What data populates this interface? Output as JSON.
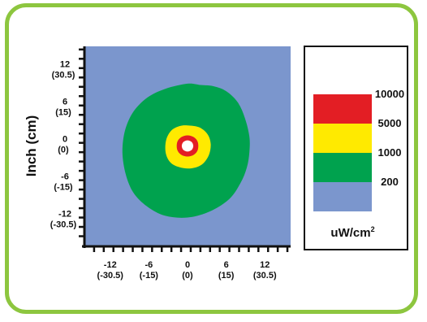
{
  "chart_data": {
    "type": "heatmap",
    "title": "",
    "ylabel": "Inch (cm)",
    "xlabel": "",
    "xlim": [
      -16,
      16
    ],
    "ylim": [
      -16,
      16
    ],
    "x_ticks": [
      {
        "value": -12,
        "label": "-12",
        "sublabel": "(-30.5)"
      },
      {
        "value": -6,
        "label": "-6",
        "sublabel": "(-15)"
      },
      {
        "value": 0,
        "label": "0",
        "sublabel": "(0)"
      },
      {
        "value": 6,
        "label": "6",
        "sublabel": "(15)"
      },
      {
        "value": 12,
        "label": "12",
        "sublabel": "(30.5)"
      }
    ],
    "y_ticks": [
      {
        "value": 12,
        "label": "12",
        "sublabel": "(30.5)"
      },
      {
        "value": 6,
        "label": "6",
        "sublabel": "(15)"
      },
      {
        "value": 0,
        "label": "0",
        "sublabel": "(0)"
      },
      {
        "value": -6,
        "label": "-6",
        "sublabel": "(-15)"
      },
      {
        "value": -12,
        "label": "-12",
        "sublabel": "(-30.5)"
      }
    ],
    "minor_tick_step": 1.5,
    "background_level": {
      "range": "<200",
      "color": "#7b96cd"
    },
    "regions": [
      {
        "range": "200-1000",
        "color": "#00a24e",
        "contour": [
          [
            0,
            10
          ],
          [
            2,
            9.8
          ],
          [
            4,
            9.6
          ],
          [
            6,
            8.8
          ],
          [
            7.8,
            7
          ],
          [
            8.9,
            4.5
          ],
          [
            9.6,
            1.5
          ],
          [
            9.6,
            -1
          ],
          [
            9.2,
            -3.5
          ],
          [
            8.2,
            -6
          ],
          [
            6.5,
            -8.5
          ],
          [
            3.5,
            -10.5
          ],
          [
            0,
            -11.5
          ],
          [
            -3.5,
            -11.2
          ],
          [
            -6.3,
            -9.7
          ],
          [
            -8.4,
            -7.5
          ],
          [
            -9.6,
            -4.5
          ],
          [
            -10.1,
            -1
          ],
          [
            -9.7,
            2.5
          ],
          [
            -8.4,
            5.5
          ],
          [
            -6.2,
            7.8
          ],
          [
            -3.4,
            9.2
          ]
        ]
      },
      {
        "range": "1000-5000",
        "color": "#ffea00",
        "contour": [
          [
            0,
            3.3
          ],
          [
            1.8,
            3
          ],
          [
            3.1,
            1.9
          ],
          [
            3.6,
            0.3
          ],
          [
            3.3,
            -1.5
          ],
          [
            2.2,
            -3
          ],
          [
            0.5,
            -3.6
          ],
          [
            -1.3,
            -3.4
          ],
          [
            -2.7,
            -2.6
          ],
          [
            -3.4,
            -1
          ],
          [
            -3.3,
            1
          ],
          [
            -2.5,
            2.5
          ],
          [
            -1.2,
            3.2
          ]
        ]
      },
      {
        "range": "5000-10000",
        "color": "#e31e24",
        "contour": [
          [
            0,
            1.7
          ],
          [
            1,
            1.4
          ],
          [
            1.6,
            0.6
          ],
          [
            1.6,
            -0.6
          ],
          [
            1,
            -1.4
          ],
          [
            0,
            -1.7
          ],
          [
            -1,
            -1.4
          ],
          [
            -1.6,
            -0.6
          ],
          [
            -1.6,
            0.6
          ],
          [
            -1,
            1.4
          ]
        ]
      },
      {
        "range": ">10000",
        "color": "#ffffff",
        "contour": [
          [
            0,
            0.9
          ],
          [
            0.64,
            0.64
          ],
          [
            0.9,
            0
          ],
          [
            0.64,
            -0.64
          ],
          [
            0,
            -0.9
          ],
          [
            -0.64,
            -0.64
          ],
          [
            -0.9,
            0
          ],
          [
            -0.64,
            0.64
          ]
        ]
      }
    ],
    "legend": {
      "placement": "right",
      "unit": "uW/cm",
      "unit_superscript": "2",
      "colors": [
        "#ffffff",
        "#e31e24",
        "#ffea00",
        "#00a24e",
        "#7b96cd"
      ],
      "boundaries": [
        "10000",
        "5000",
        "1000",
        "200"
      ]
    }
  }
}
